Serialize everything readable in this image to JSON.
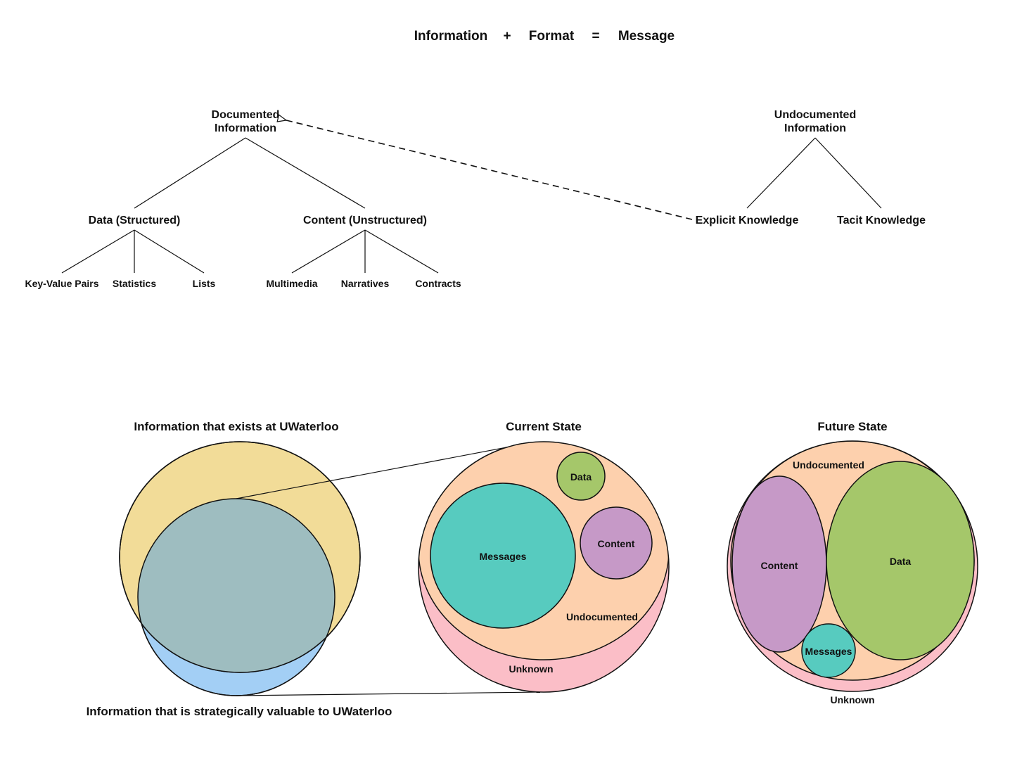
{
  "equation": {
    "term1": "Information",
    "plus": "+",
    "term2": "Format",
    "equals": "=",
    "result": "Message"
  },
  "hierarchy": {
    "documented": {
      "line1": "Documented",
      "line2": "Information",
      "data": {
        "label": "Data (Structured)",
        "children": [
          "Key-Value Pairs",
          "Statistics",
          "Lists"
        ]
      },
      "content": {
        "label": "Content (Unstructured)",
        "children": [
          "Multimedia",
          "Narratives",
          "Contracts"
        ]
      }
    },
    "undocumented": {
      "line1": "Undocumented",
      "line2": "Information",
      "explicit": "Explicit Knowledge",
      "tacit": "Tacit Knowledge"
    }
  },
  "venn": {
    "exists_title": "Information that exists at UWaterloo",
    "valuable_caption": "Information that is strategically valuable to UWaterloo"
  },
  "current_state": {
    "title": "Current State",
    "data": "Data",
    "messages": "Messages",
    "content": "Content",
    "undocumented": "Undocumented",
    "unknown": "Unknown"
  },
  "future_state": {
    "title": "Future State",
    "undocumented": "Undocumented",
    "content": "Content",
    "data": "Data",
    "messages": "Messages",
    "unknown": "Unknown"
  },
  "colors": {
    "exists_fill": "#f2dc98",
    "valuable_fill": "#a3cff5",
    "overlap_fill": "#9ebdc0",
    "undocumented_fill": "#fdd0ad",
    "unknown_fill": "#fbbec7",
    "data_fill": "#a5c76a",
    "messages_fill": "#57cbbf",
    "content_fill": "#c699c7"
  }
}
